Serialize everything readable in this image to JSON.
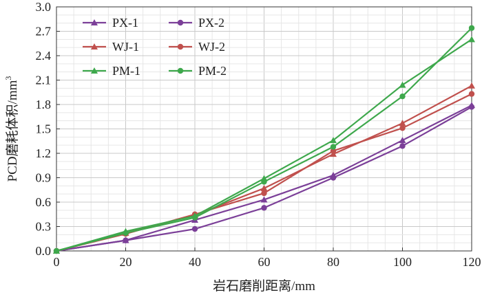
{
  "chart_data": {
    "type": "line",
    "title": "",
    "xlabel": "岩石磨削距离/mm",
    "ylabel": "PCD磨耗体积/mm",
    "ylabel_sup": "3",
    "xlim": [
      0,
      120
    ],
    "ylim": [
      0,
      3.0
    ],
    "x_ticks": [
      "0",
      "20",
      "40",
      "60",
      "80",
      "100",
      "120"
    ],
    "y_ticks": [
      "0.0",
      "0.3",
      "0.6",
      "0.9",
      "1.2",
      "1.5",
      "1.8",
      "2.1",
      "2.4",
      "2.7",
      "3.0"
    ],
    "grid": true,
    "legend": "top-left",
    "x": [
      0,
      20,
      40,
      60,
      80,
      100,
      120
    ],
    "series": [
      {
        "name": "PX-1",
        "marker": "triangle",
        "color": "#7b3f98",
        "values": [
          0,
          0.13,
          0.38,
          0.63,
          0.93,
          1.36,
          1.79
        ]
      },
      {
        "name": "PX-2",
        "marker": "circle",
        "color": "#7b3f98",
        "values": [
          0,
          0.13,
          0.27,
          0.53,
          0.9,
          1.29,
          1.77
        ]
      },
      {
        "name": "WJ-1",
        "marker": "triangle",
        "color": "#c0504d",
        "values": [
          0,
          0.22,
          0.44,
          0.77,
          1.19,
          1.57,
          2.03
        ]
      },
      {
        "name": "WJ-2",
        "marker": "circle",
        "color": "#c0504d",
        "values": [
          0,
          0.21,
          0.45,
          0.71,
          1.23,
          1.51,
          1.93
        ]
      },
      {
        "name": "PM-1",
        "marker": "triangle",
        "color": "#3ea84c",
        "values": [
          0,
          0.24,
          0.43,
          0.89,
          1.36,
          2.04,
          2.6
        ]
      },
      {
        "name": "PM-2",
        "marker": "circle",
        "color": "#3ea84c",
        "values": [
          0,
          0.22,
          0.41,
          0.85,
          1.28,
          1.9,
          2.74
        ]
      }
    ]
  }
}
